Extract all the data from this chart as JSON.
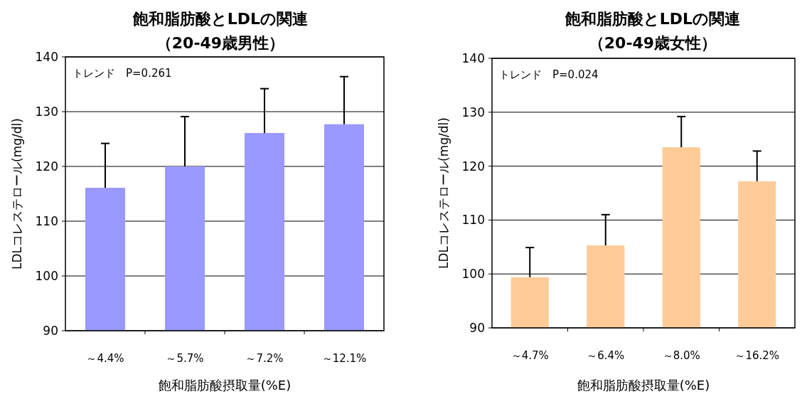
{
  "chart_data": [
    {
      "type": "bar",
      "title": "飽和脂肪酸とLDLの関連",
      "subtitle": "（20-49歳男性）",
      "xlabel": "飽和脂肪酸摂取量(%E)",
      "ylabel": "LDLコレステロール(mg/dl)",
      "annotations": [
        "トレンド　P=0.261"
      ],
      "categories": [
        "～4.4%",
        "～5.7%",
        "～7.2%",
        "～12.1%"
      ],
      "values": [
        116.1,
        120.0,
        126.1,
        127.7
      ],
      "errors": [
        [
          116.1,
          124.2
        ],
        [
          120.0,
          129.1
        ],
        [
          126.1,
          134.2
        ],
        [
          127.7,
          136.4
        ]
      ],
      "color": "#9999ff",
      "ylim": [
        90,
        140
      ],
      "yticks": [
        90,
        100,
        110,
        120,
        130,
        140
      ],
      "grid": "y"
    },
    {
      "type": "bar",
      "title": "飽和脂肪酸とLDLの関連",
      "subtitle": "（20-49歳女性）",
      "xlabel": "飽和脂肪酸摂取量(%E)",
      "ylabel": "LDLコレステロール(mg/dl)",
      "annotations": [
        "トレンド　P=0.024"
      ],
      "categories": [
        "～4.7%",
        "～6.4%",
        "～8.0%",
        "～16.2%"
      ],
      "values": [
        99.4,
        105.3,
        123.5,
        117.2
      ],
      "errors": [
        [
          99.4,
          104.9
        ],
        [
          105.3,
          111.0
        ],
        [
          123.5,
          129.2
        ],
        [
          117.2,
          122.8
        ]
      ],
      "color": "#ffcc99",
      "ylim": [
        90,
        140
      ],
      "yticks": [
        90,
        100,
        110,
        120,
        130,
        140
      ],
      "grid": "y"
    }
  ]
}
